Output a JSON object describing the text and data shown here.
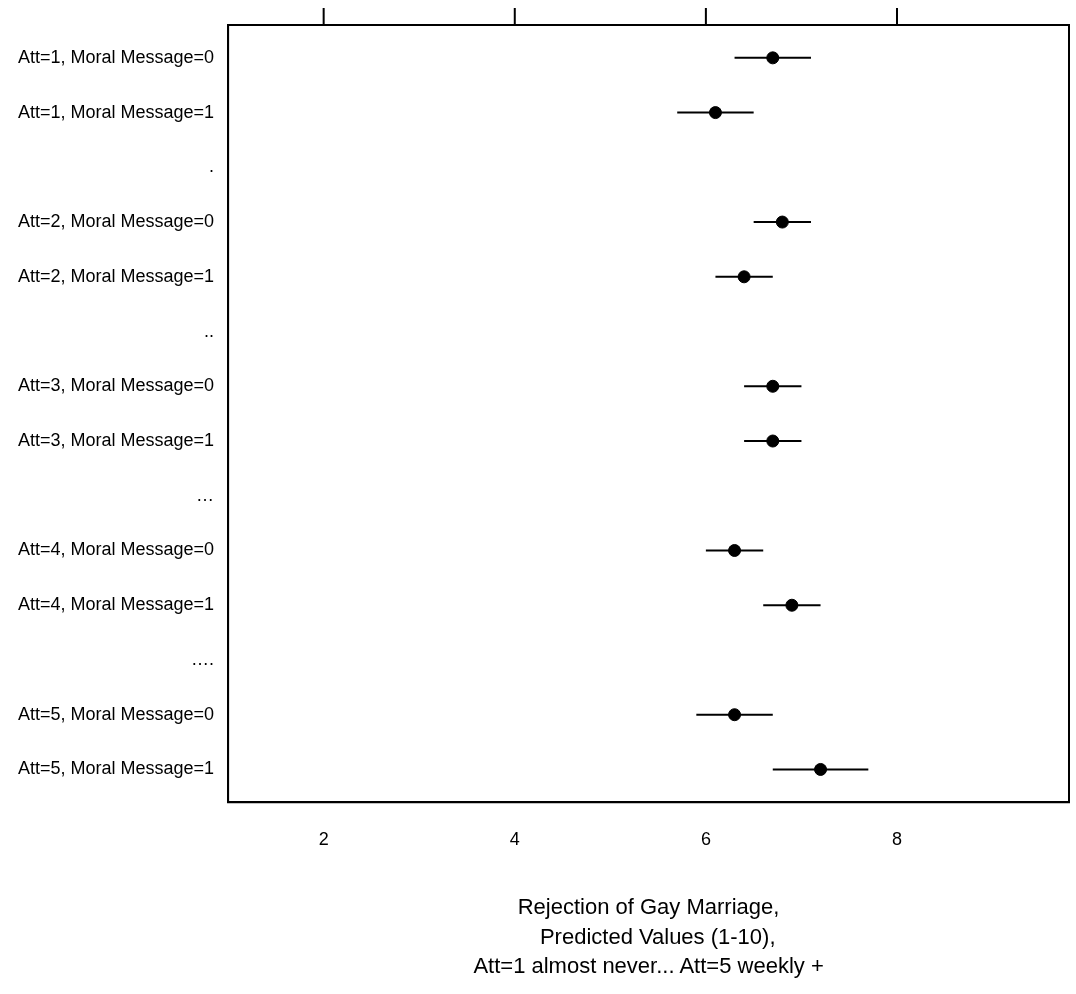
{
  "chart_data": {
    "type": "scatter",
    "orientation": "horizontal",
    "xlabel": "Rejection of Gay Marriage,\n   Predicted Values (1-10),\nAtt=1 almost never... Att=5 weekly +",
    "categories": [
      "Att=1, Moral Message=0",
      "Att=1, Moral Message=1",
      ".",
      "Att=2, Moral Message=0",
      "Att=2, Moral Message=1",
      "..",
      "Att=3, Moral Message=0",
      "Att=3, Moral Message=1",
      "…",
      "Att=4, Moral Message=0",
      "Att=4, Moral Message=1",
      "….",
      "Att=5, Moral Message=0",
      "Att=5, Moral Message=1"
    ],
    "values": [
      6.7,
      6.1,
      null,
      6.8,
      6.4,
      null,
      6.7,
      6.7,
      null,
      6.3,
      6.9,
      null,
      6.3,
      7.2
    ],
    "errors": [
      0.4,
      0.4,
      null,
      0.3,
      0.3,
      null,
      0.3,
      0.3,
      null,
      0.3,
      0.3,
      null,
      0.4,
      0.5
    ],
    "color": "#000000",
    "marker": "circle",
    "grid": false,
    "legend": false,
    "xlim": [
      1,
      9.8
    ],
    "xticks": [
      2,
      4,
      6,
      8
    ]
  }
}
